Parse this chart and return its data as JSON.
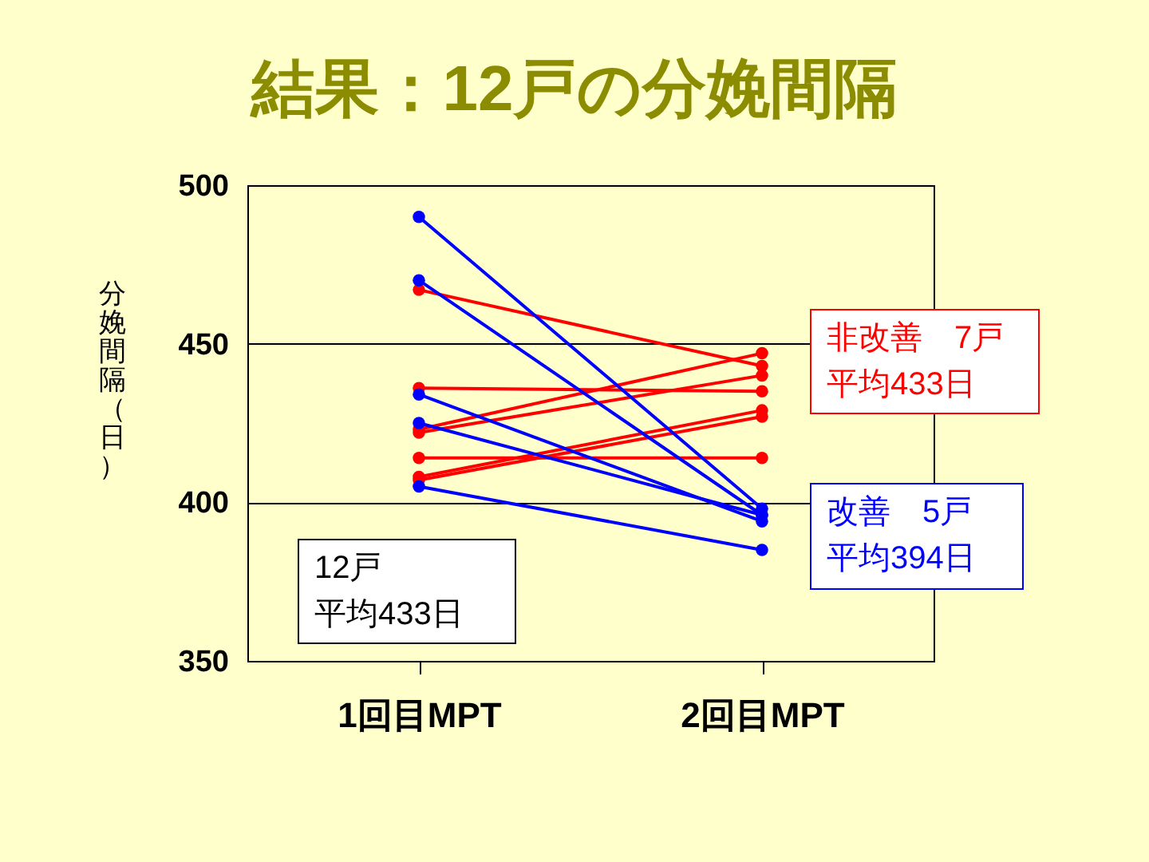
{
  "chart_data": {
    "type": "line",
    "title": "結果：12戸の分娩間隔",
    "ylabel": "分娩間隔（日）",
    "categories": [
      "1回目MPT",
      "2回目MPT"
    ],
    "ylim": [
      350,
      500
    ],
    "yticks": [
      350,
      400,
      450,
      500
    ],
    "grid": "y",
    "marker": "circle",
    "line_style": "solid",
    "annotations": [
      "12戸",
      "平均433日",
      "非改善　7戸",
      "平均433日",
      "改善　5戸",
      "平均394日"
    ],
    "series": [
      {
        "color": "#ff0000",
        "values": [
          467,
          443
        ]
      },
      {
        "color": "#ff0000",
        "values": [
          436,
          435
        ]
      },
      {
        "color": "#ff0000",
        "values": [
          423,
          447
        ]
      },
      {
        "color": "#ff0000",
        "values": [
          422,
          440
        ]
      },
      {
        "color": "#ff0000",
        "values": [
          414,
          414
        ]
      },
      {
        "color": "#ff0000",
        "values": [
          408,
          429
        ]
      },
      {
        "color": "#ff0000",
        "values": [
          407,
          427
        ]
      },
      {
        "color": "#0000ff",
        "values": [
          490,
          398
        ]
      },
      {
        "color": "#0000ff",
        "values": [
          470,
          396
        ]
      },
      {
        "color": "#0000ff",
        "values": [
          434,
          394
        ]
      },
      {
        "color": "#0000ff",
        "values": [
          425,
          396
        ]
      },
      {
        "color": "#0000ff",
        "values": [
          405,
          385
        ]
      }
    ]
  }
}
